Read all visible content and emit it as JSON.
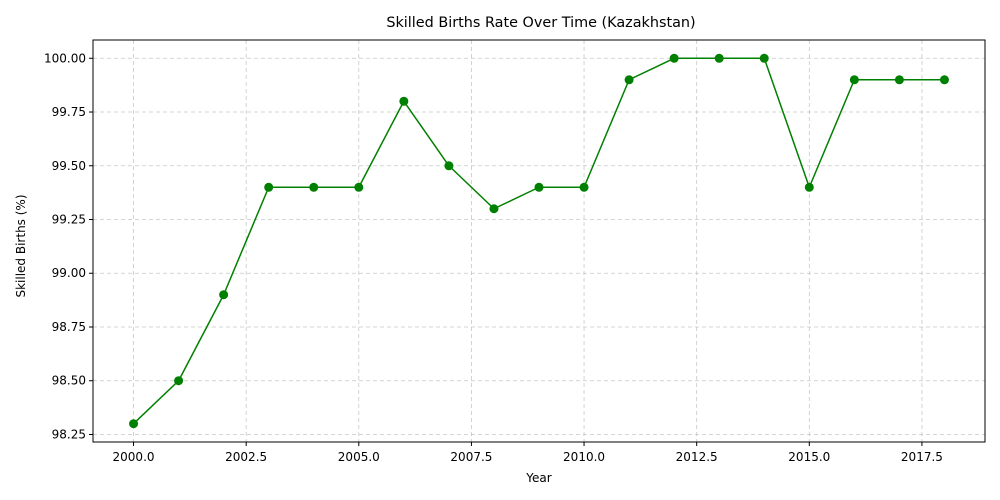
{
  "chart_data": {
    "type": "line",
    "title": "Skilled Births Rate Over Time (Kazakhstan)",
    "xlabel": "Year",
    "ylabel": "Skilled Births (%)",
    "xlim": [
      1999.1,
      2018.9
    ],
    "ylim": [
      98.215,
      100.085
    ],
    "grid": true,
    "x_ticks": [
      2000.0,
      2002.5,
      2005.0,
      2007.5,
      2010.0,
      2012.5,
      2015.0,
      2017.5
    ],
    "x_tick_labels": [
      "2000.0",
      "2002.5",
      "2005.0",
      "2007.5",
      "2010.0",
      "2012.5",
      "2015.0",
      "2017.5"
    ],
    "y_ticks": [
      98.25,
      98.5,
      98.75,
      99.0,
      99.25,
      99.5,
      99.75,
      100.0
    ],
    "y_tick_labels": [
      "98.25",
      "98.50",
      "98.75",
      "99.00",
      "99.25",
      "99.50",
      "99.75",
      "100.00"
    ],
    "color": "#008000",
    "series": [
      {
        "x": [
          2000,
          2001,
          2002,
          2003,
          2004,
          2005,
          2006,
          2007,
          2008,
          2009,
          2010,
          2011,
          2012,
          2013,
          2014,
          2015,
          2016,
          2017,
          2018
        ],
        "values": [
          98.3,
          98.5,
          98.9,
          99.4,
          99.4,
          99.4,
          99.8,
          99.5,
          99.3,
          99.4,
          99.4,
          99.9,
          100.0,
          100.0,
          100.0,
          99.4,
          99.9,
          99.9,
          99.9
        ]
      }
    ]
  }
}
